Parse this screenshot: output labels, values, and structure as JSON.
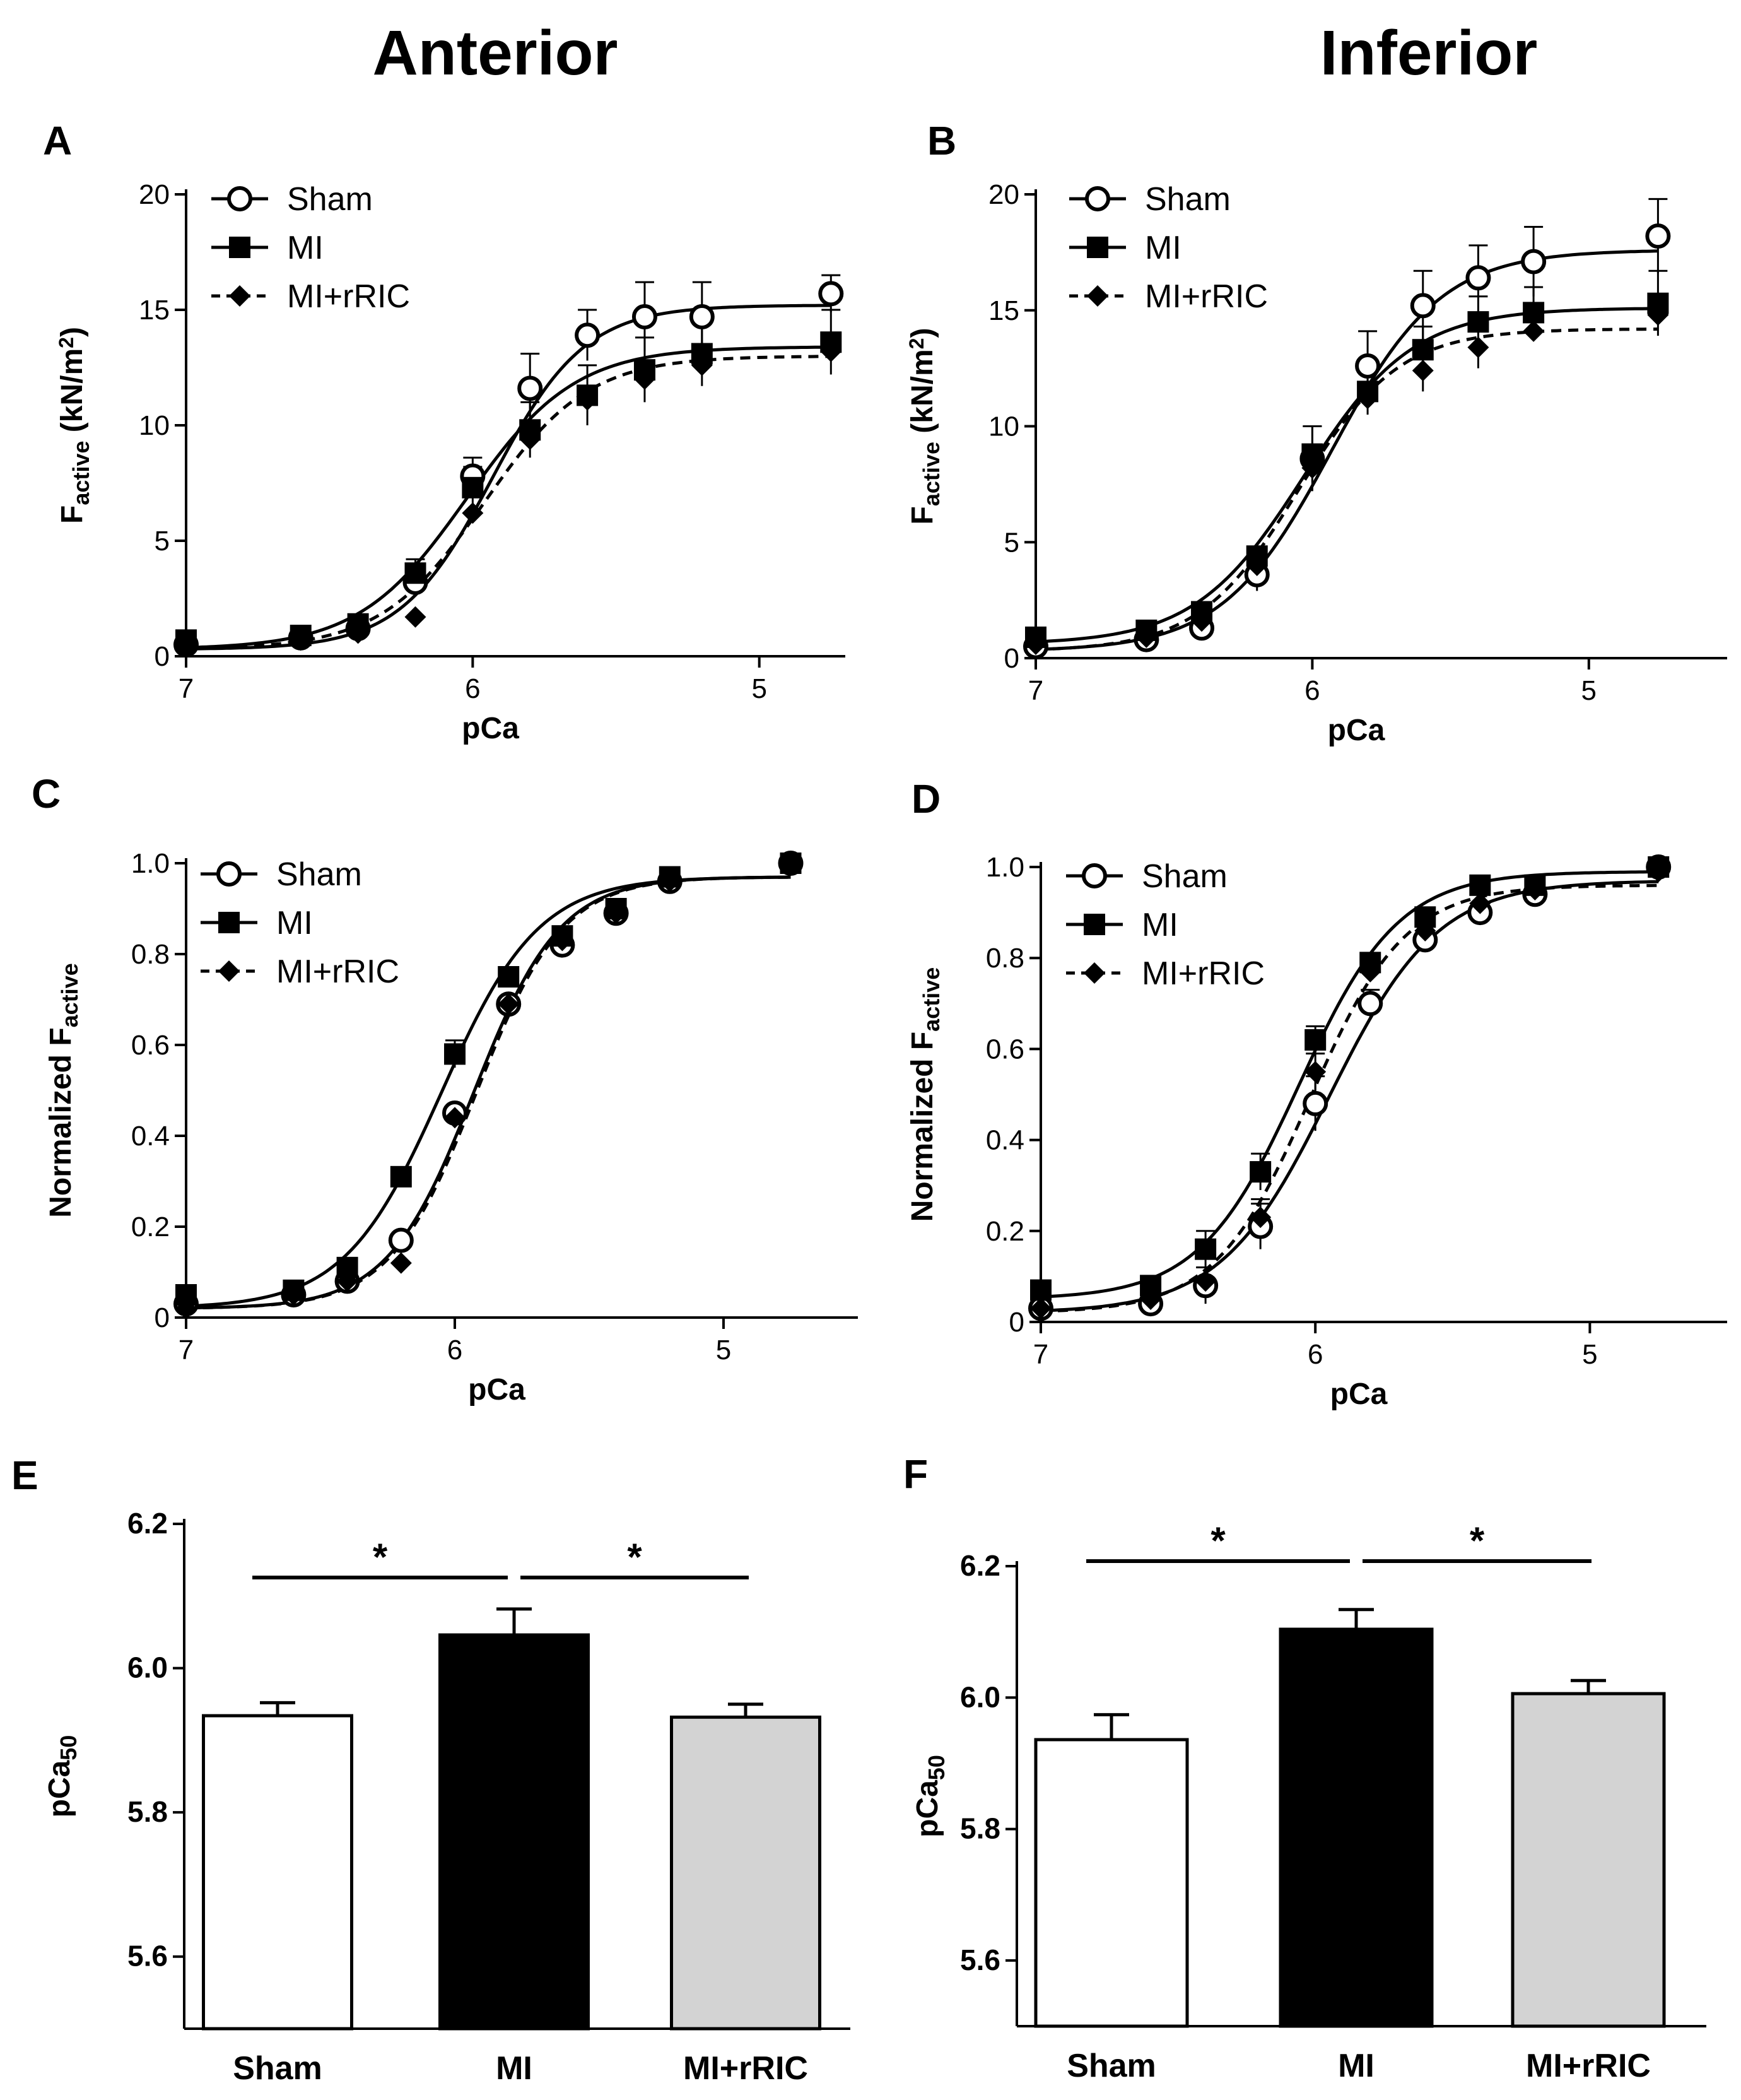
{
  "column_titles": [
    "Anterior",
    "Inferior"
  ],
  "chart_data": [
    {
      "panel": "A",
      "type": "line",
      "ylabel_main": "F",
      "ylabel_sub": "active",
      "ylabel_unit": " (kN/m",
      "ylabel_sup": "2",
      "ylabel_close": ")",
      "xlabel": "pCa",
      "xlim": [
        7,
        4.7
      ],
      "ylim": [
        0,
        20
      ],
      "xticks": [
        {
          "v": 7,
          "label": "7"
        },
        {
          "v": 6,
          "label": "6"
        },
        {
          "v": 5,
          "label": "5"
        }
      ],
      "yticks": [
        {
          "v": 0,
          "label": "0"
        },
        {
          "v": 5,
          "label": "5"
        },
        {
          "v": 10,
          "label": "10"
        },
        {
          "v": 15,
          "label": "15"
        },
        {
          "v": 20,
          "label": "20"
        }
      ],
      "legend": [
        "Sham",
        "MI",
        "MI+rRIC"
      ],
      "series": [
        {
          "name": "Sham",
          "marker": "circle-open",
          "dash": false,
          "fit": {
            "bottom": 0.3,
            "top": 15.2,
            "ec50": 5.93,
            "hill": 2.7
          },
          "points": [
            [
              7,
              0.5,
              0
            ],
            [
              6.6,
              0.8,
              0
            ],
            [
              6.4,
              1.2,
              0
            ],
            [
              6.2,
              3.2,
              0.5
            ],
            [
              6.0,
              7.8,
              0.8
            ],
            [
              5.8,
              11.6,
              1.5
            ],
            [
              5.6,
              13.9,
              1.1
            ],
            [
              5.4,
              14.7,
              1.5
            ],
            [
              5.2,
              14.7,
              1.5
            ],
            [
              4.75,
              15.7,
              0.8
            ]
          ]
        },
        {
          "name": "MI",
          "marker": "square",
          "dash": false,
          "fit": {
            "bottom": 0.3,
            "top": 13.4,
            "ec50": 6.02,
            "hill": 2.3
          },
          "points": [
            [
              7,
              0.7,
              0
            ],
            [
              6.6,
              0.9,
              0
            ],
            [
              6.4,
              1.4,
              0
            ],
            [
              6.2,
              3.6,
              0.6
            ],
            [
              6.0,
              7.3,
              0.9
            ],
            [
              5.8,
              9.8,
              1.2
            ],
            [
              5.6,
              11.3,
              1.3
            ],
            [
              5.4,
              12.4,
              1.4
            ],
            [
              5.2,
              13.1,
              1.4
            ],
            [
              4.75,
              13.6,
              1.4
            ]
          ]
        },
        {
          "name": "MI+rRIC",
          "marker": "diamond",
          "dash": true,
          "fit": {
            "bottom": 0.3,
            "top": 13.0,
            "ec50": 5.96,
            "hill": 2.4
          },
          "points": [
            [
              7,
              0.4,
              0
            ],
            [
              6.6,
              0.7,
              0
            ],
            [
              6.4,
              1.0,
              0
            ],
            [
              6.2,
              1.7,
              0
            ],
            [
              6.0,
              6.2,
              0
            ],
            [
              5.8,
              9.4,
              0
            ],
            [
              5.6,
              11.1,
              0
            ],
            [
              5.4,
              12.0,
              0
            ],
            [
              5.2,
              12.6,
              0
            ],
            [
              4.75,
              13.2,
              0
            ]
          ]
        }
      ]
    },
    {
      "panel": "B",
      "type": "line",
      "ylabel_main": "F",
      "ylabel_sub": "active",
      "ylabel_unit": " (kN/m",
      "ylabel_sup": "2",
      "ylabel_close": ")",
      "xlabel": "pCa",
      "xlim": [
        7,
        4.5
      ],
      "ylim": [
        0,
        20
      ],
      "xticks": [
        {
          "v": 7,
          "label": "7"
        },
        {
          "v": 6,
          "label": "6"
        },
        {
          "v": 5,
          "label": "5"
        }
      ],
      "yticks": [
        {
          "v": 0,
          "label": "0"
        },
        {
          "v": 5,
          "label": "5"
        },
        {
          "v": 10,
          "label": "10"
        },
        {
          "v": 15,
          "label": "15"
        },
        {
          "v": 20,
          "label": "20"
        }
      ],
      "legend": [
        "Sham",
        "MI",
        "MI+rRIC"
      ],
      "series": [
        {
          "name": "Sham",
          "marker": "circle-open",
          "dash": false,
          "fit": {
            "bottom": 0.3,
            "top": 17.6,
            "ec50": 5.93,
            "hill": 2.2
          },
          "points": [
            [
              7,
              0.5,
              0
            ],
            [
              6.6,
              0.8,
              0
            ],
            [
              6.4,
              1.3,
              0
            ],
            [
              6.2,
              3.6,
              0.7
            ],
            [
              6.0,
              8.6,
              1.4
            ],
            [
              5.8,
              12.6,
              1.5
            ],
            [
              5.6,
              15.2,
              1.5
            ],
            [
              5.4,
              16.4,
              1.4
            ],
            [
              5.2,
              17.1,
              1.5
            ],
            [
              4.75,
              18.2,
              1.6
            ]
          ]
        },
        {
          "name": "MI",
          "marker": "square",
          "dash": false,
          "fit": {
            "bottom": 0.6,
            "top": 15.1,
            "ec50": 6.03,
            "hill": 2.2
          },
          "points": [
            [
              7,
              0.9,
              0
            ],
            [
              6.6,
              1.2,
              0
            ],
            [
              6.4,
              2.0,
              0
            ],
            [
              6.2,
              4.4,
              0
            ],
            [
              6.0,
              8.8,
              1.2
            ],
            [
              5.8,
              11.5,
              1.0
            ],
            [
              5.6,
              13.3,
              1.0
            ],
            [
              5.4,
              14.5,
              1.1
            ],
            [
              5.2,
              14.9,
              1.1
            ],
            [
              4.75,
              15.3,
              1.4
            ]
          ]
        },
        {
          "name": "MI+rRIC",
          "marker": "diamond",
          "dash": true,
          "fit": {
            "bottom": 0.3,
            "top": 14.2,
            "ec50": 6.05,
            "hill": 2.4
          },
          "points": [
            [
              7,
              0.6,
              0
            ],
            [
              6.6,
              0.9,
              0
            ],
            [
              6.4,
              1.6,
              0
            ],
            [
              6.2,
              4.0,
              0
            ],
            [
              6.0,
              8.2,
              0
            ],
            [
              5.8,
              11.2,
              0
            ],
            [
              5.6,
              12.4,
              0.9
            ],
            [
              5.4,
              13.4,
              0.9
            ],
            [
              5.2,
              14.1,
              0
            ],
            [
              4.75,
              14.8,
              0
            ]
          ]
        }
      ]
    },
    {
      "panel": "C",
      "type": "line",
      "ylabel_main": "Normalized F",
      "ylabel_sub": "active",
      "ylabel_unit": "",
      "ylabel_sup": "",
      "ylabel_close": "",
      "xlabel": "pCa",
      "xlim": [
        7,
        4.5
      ],
      "ylim": [
        0,
        1.0
      ],
      "xticks": [
        {
          "v": 7,
          "label": "7"
        },
        {
          "v": 6,
          "label": "6"
        },
        {
          "v": 5,
          "label": "5"
        }
      ],
      "yticks": [
        {
          "v": 0,
          "label": "0"
        },
        {
          "v": 0.2,
          "label": "0.2"
        },
        {
          "v": 0.4,
          "label": "0.4"
        },
        {
          "v": 0.6,
          "label": "0.6"
        },
        {
          "v": 0.8,
          "label": "0.8"
        },
        {
          "v": 1.0,
          "label": "1.0"
        }
      ],
      "legend": [
        "Sham",
        "MI",
        "MI+rRIC"
      ],
      "series": [
        {
          "name": "Sham",
          "marker": "circle-open",
          "dash": false,
          "fit": {
            "bottom": 0.02,
            "top": 0.97,
            "ec50": 5.93,
            "hill": 2.7
          },
          "points": [
            [
              7,
              0.03,
              0
            ],
            [
              6.6,
              0.05,
              0
            ],
            [
              6.4,
              0.08,
              0
            ],
            [
              6.2,
              0.17,
              0
            ],
            [
              6.0,
              0.45,
              0
            ],
            [
              5.8,
              0.69,
              0
            ],
            [
              5.6,
              0.82,
              0
            ],
            [
              5.4,
              0.89,
              0
            ],
            [
              5.2,
              0.96,
              0
            ],
            [
              4.75,
              1.0,
              0
            ]
          ]
        },
        {
          "name": "MI",
          "marker": "square",
          "dash": false,
          "fit": {
            "bottom": 0.02,
            "top": 0.97,
            "ec50": 6.05,
            "hill": 2.4
          },
          "points": [
            [
              7,
              0.05,
              0
            ],
            [
              6.6,
              0.06,
              0
            ],
            [
              6.4,
              0.11,
              0
            ],
            [
              6.2,
              0.31,
              0
            ],
            [
              6.0,
              0.58,
              0.03
            ],
            [
              5.8,
              0.75,
              0.02
            ],
            [
              5.6,
              0.84,
              0
            ],
            [
              5.4,
              0.9,
              0
            ],
            [
              5.2,
              0.97,
              0
            ],
            [
              4.75,
              1.0,
              0
            ]
          ]
        },
        {
          "name": "MI+rRIC",
          "marker": "diamond",
          "dash": true,
          "fit": {
            "bottom": 0.02,
            "top": 0.97,
            "ec50": 5.92,
            "hill": 2.7
          },
          "points": [
            [
              7,
              0.02,
              0
            ],
            [
              6.6,
              0.05,
              0
            ],
            [
              6.4,
              0.08,
              0
            ],
            [
              6.2,
              0.12,
              0
            ],
            [
              6.0,
              0.44,
              0
            ],
            [
              5.8,
              0.69,
              0
            ],
            [
              5.6,
              0.83,
              0
            ],
            [
              5.4,
              0.89,
              0
            ],
            [
              5.2,
              0.96,
              0
            ],
            [
              4.75,
              1.0,
              0
            ]
          ]
        }
      ]
    },
    {
      "panel": "D",
      "type": "line",
      "ylabel_main": "Normalized F",
      "ylabel_sub": "active",
      "ylabel_unit": "",
      "ylabel_sup": "",
      "ylabel_close": "",
      "xlabel": "pCa",
      "xlim": [
        7,
        4.5
      ],
      "ylim": [
        0,
        1.0
      ],
      "xticks": [
        {
          "v": 7,
          "label": "7"
        },
        {
          "v": 6,
          "label": "6"
        },
        {
          "v": 5,
          "label": "5"
        }
      ],
      "yticks": [
        {
          "v": 0,
          "label": "0"
        },
        {
          "v": 0.2,
          "label": "0.2"
        },
        {
          "v": 0.4,
          "label": "0.4"
        },
        {
          "v": 0.6,
          "label": "0.6"
        },
        {
          "v": 0.8,
          "label": "0.8"
        },
        {
          "v": 1.0,
          "label": "1.0"
        }
      ],
      "legend": [
        "Sham",
        "MI",
        "MI+rRIC"
      ],
      "series": [
        {
          "name": "Sham",
          "marker": "circle-open",
          "dash": false,
          "fit": {
            "bottom": 0.02,
            "top": 0.97,
            "ec50": 5.95,
            "hill": 2.2
          },
          "points": [
            [
              7,
              0.03,
              0
            ],
            [
              6.6,
              0.04,
              0
            ],
            [
              6.4,
              0.08,
              0.04
            ],
            [
              6.2,
              0.21,
              0.05
            ],
            [
              6.0,
              0.48,
              0.06
            ],
            [
              5.8,
              0.7,
              0.03
            ],
            [
              5.6,
              0.84,
              0.02
            ],
            [
              5.4,
              0.9,
              0
            ],
            [
              5.2,
              0.94,
              0
            ],
            [
              4.75,
              1.0,
              0
            ]
          ]
        },
        {
          "name": "MI",
          "marker": "square",
          "dash": false,
          "fit": {
            "bottom": 0.05,
            "top": 0.99,
            "ec50": 6.06,
            "hill": 2.4
          },
          "points": [
            [
              7,
              0.07,
              0
            ],
            [
              6.6,
              0.08,
              0
            ],
            [
              6.4,
              0.16,
              0.04
            ],
            [
              6.2,
              0.33,
              0.04
            ],
            [
              6.0,
              0.62,
              0.03
            ],
            [
              5.8,
              0.79,
              0.02
            ],
            [
              5.6,
              0.89,
              0
            ],
            [
              5.4,
              0.96,
              0
            ],
            [
              5.2,
              0.96,
              0
            ],
            [
              4.75,
              1.0,
              0
            ]
          ]
        },
        {
          "name": "MI+rRIC",
          "marker": "diamond",
          "dash": true,
          "fit": {
            "bottom": 0.02,
            "top": 0.96,
            "ec50": 6.02,
            "hill": 2.5
          },
          "points": [
            [
              7,
              0.03,
              0
            ],
            [
              6.6,
              0.05,
              0
            ],
            [
              6.4,
              0.09,
              0
            ],
            [
              6.2,
              0.23,
              0.04
            ],
            [
              6.0,
              0.55,
              0.04
            ],
            [
              5.8,
              0.77,
              0
            ],
            [
              5.6,
              0.86,
              0
            ],
            [
              5.4,
              0.92,
              0
            ],
            [
              5.2,
              0.95,
              0
            ],
            [
              4.75,
              0.99,
              0
            ]
          ]
        }
      ]
    },
    {
      "panel": "E",
      "type": "bar",
      "ylabel_main": "pCa",
      "ylabel_sub": "50",
      "categories": [
        "Sham",
        "MI",
        "MI+rRIC"
      ],
      "values": [
        5.934,
        6.046,
        5.932
      ],
      "errors": [
        0.018,
        0.036,
        0.018
      ],
      "colors": [
        "#ffffff",
        "#000000",
        "#d3d3d3"
      ],
      "ylim": [
        5.5,
        6.2
      ],
      "yticks": [
        {
          "v": 5.6,
          "label": "5.6"
        },
        {
          "v": 5.8,
          "label": "5.8"
        },
        {
          "v": 6.0,
          "label": "6.0"
        },
        {
          "v": 6.2,
          "label": "6.2"
        }
      ],
      "significance": [
        {
          "from": 0,
          "to": 1,
          "label": "*"
        },
        {
          "from": 1,
          "to": 2,
          "label": "*"
        }
      ]
    },
    {
      "panel": "F",
      "type": "bar",
      "ylabel_main": "pCa",
      "ylabel_sub": "50",
      "categories": [
        "Sham",
        "MI",
        "MI+rRIC"
      ],
      "values": [
        5.936,
        6.104,
        6.006
      ],
      "errors": [
        0.038,
        0.03,
        0.02
      ],
      "colors": [
        "#ffffff",
        "#000000",
        "#d3d3d3"
      ],
      "ylim": [
        5.5,
        6.2
      ],
      "yticks": [
        {
          "v": 5.6,
          "label": "5.6"
        },
        {
          "v": 5.8,
          "label": "5.8"
        },
        {
          "v": 6.0,
          "label": "6.0"
        },
        {
          "v": 6.2,
          "label": "6.2"
        }
      ],
      "significance": [
        {
          "from": 0,
          "to": 1,
          "label": "*"
        },
        {
          "from": 1,
          "to": 2,
          "label": "*"
        }
      ]
    }
  ]
}
